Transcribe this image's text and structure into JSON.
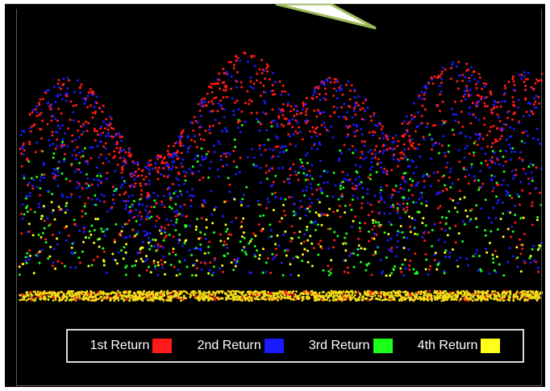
{
  "scene": {
    "background_color": "#000000",
    "ground_color": "#f2dc17"
  },
  "legend": {
    "items": [
      {
        "label": "1st Return",
        "color": "#ff1a1a"
      },
      {
        "label": "2nd Return",
        "color": "#1a1aff"
      },
      {
        "label": "3rd Return",
        "color": "#1aff1a"
      },
      {
        "label": "4th Return",
        "color": "#ffff1a"
      }
    ]
  },
  "callout": {
    "fill_color": "#ffffff",
    "border_color": "#9bbb59"
  }
}
